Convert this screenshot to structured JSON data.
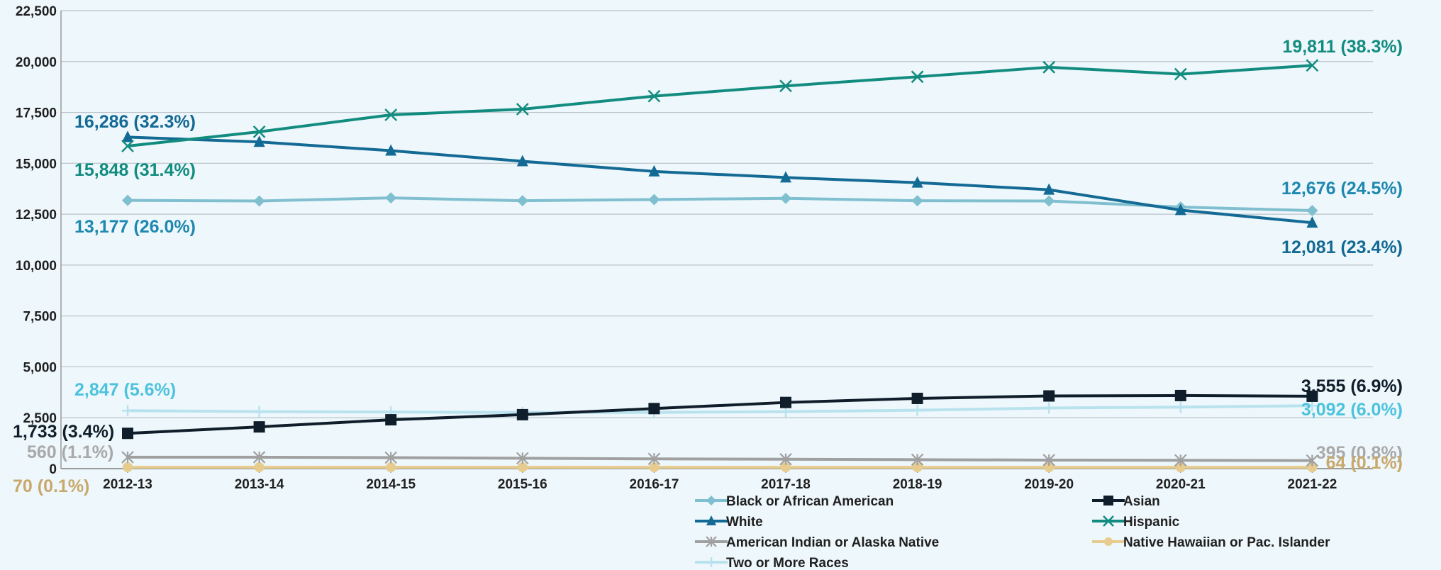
{
  "chart_data": {
    "type": "line",
    "title": "",
    "xlabel": "",
    "ylabel": "",
    "ylim": [
      0,
      22500
    ],
    "yticks": [
      0,
      2500,
      5000,
      7500,
      10000,
      12500,
      15000,
      17500,
      20000,
      22500
    ],
    "ytick_labels": [
      "0",
      "2,500",
      "5,000",
      "7,500",
      "10,000",
      "12,500",
      "15,000",
      "17,500",
      "20,000",
      "22,500"
    ],
    "grid": true,
    "legend_position": "bottom",
    "categories": [
      "2012-13",
      "2013-14",
      "2014-15",
      "2015-16",
      "2016-17",
      "2017-18",
      "2018-19",
      "2019-20",
      "2020-21",
      "2021-22"
    ],
    "series": [
      {
        "name": "Black or African American",
        "color": "#7fbfcf",
        "marker": "diamond",
        "values": [
          13177,
          13150,
          13300,
          13160,
          13220,
          13280,
          13160,
          13150,
          12850,
          12676
        ],
        "first_label": "13,177 (26.0%)",
        "last_label": "12,676 (24.5%)",
        "label_color": "#1e88b0"
      },
      {
        "name": "Asian",
        "color": "#0f1e2a",
        "marker": "square",
        "values": [
          1733,
          2050,
          2400,
          2650,
          2950,
          3250,
          3450,
          3570,
          3590,
          3555
        ],
        "first_label": "1,733 (3.4%)",
        "last_label": "3,555 (6.9%)",
        "label_color": "#0f1e2a"
      },
      {
        "name": "White",
        "color": "#136a94",
        "marker": "triangle",
        "values": [
          16286,
          16050,
          15620,
          15100,
          14600,
          14300,
          14050,
          13700,
          12700,
          12081
        ],
        "first_label": "16,286 (32.3%)",
        "last_label": "12,081 (23.4%)",
        "label_color": "#136a94"
      },
      {
        "name": "Hispanic",
        "color": "#138c80",
        "marker": "x",
        "values": [
          15848,
          16550,
          17380,
          17660,
          18300,
          18800,
          19250,
          19720,
          19380,
          19811
        ],
        "first_label": "15,848 (31.4%)",
        "last_label": "19,811 (38.3%)",
        "label_color": "#138c80"
      },
      {
        "name": "American Indian or Alaska Native",
        "color": "#a0a0a0",
        "marker": "star",
        "values": [
          560,
          560,
          540,
          510,
          480,
          460,
          440,
          420,
          410,
          395
        ],
        "first_label": "560 (1.1%)",
        "last_label": "395 (0.8%)",
        "label_color": "#a9a9a9"
      },
      {
        "name": "Native Hawaiian or Pac. Islander",
        "color": "#e6cc8f",
        "marker": "circle",
        "values": [
          70,
          70,
          68,
          68,
          66,
          66,
          65,
          65,
          64,
          64
        ],
        "first_label": "70 (0.1%)",
        "last_label": "64 (0.1%)",
        "label_color": "#c9a86b"
      },
      {
        "name": "Two or More Races",
        "color": "#b9e2ef",
        "marker": "plus",
        "values": [
          2847,
          2800,
          2780,
          2760,
          2760,
          2800,
          2870,
          2980,
          3020,
          3092
        ],
        "first_label": "2,847 (5.6%)",
        "last_label": "3,092 (6.0%)",
        "label_color": "#4cc3de"
      }
    ]
  }
}
